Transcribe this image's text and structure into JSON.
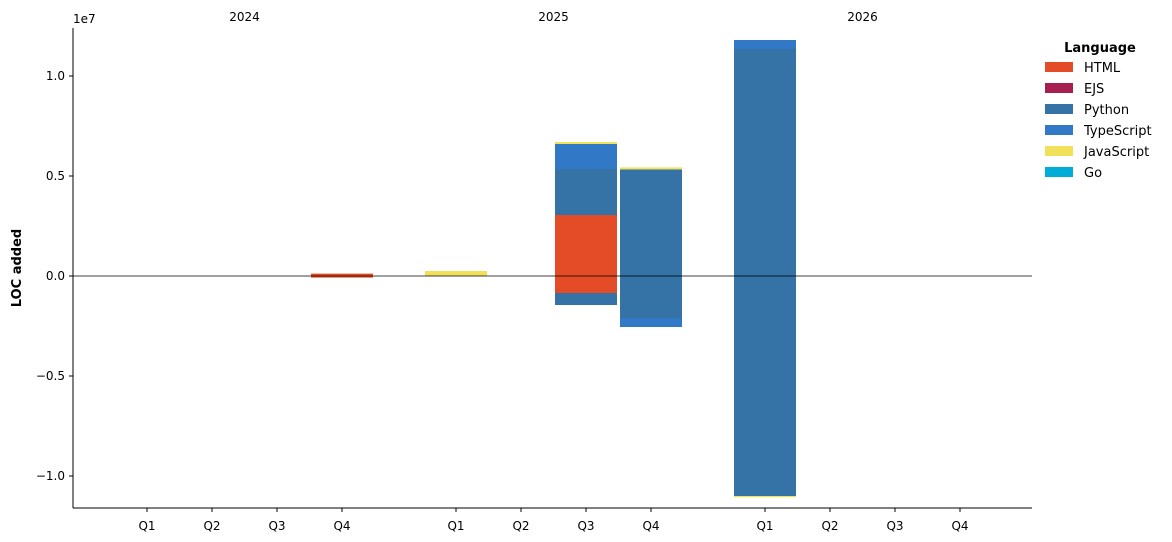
{
  "chart_data": {
    "type": "bar",
    "stacked": true,
    "title": "",
    "xlabel": "",
    "ylabel": "LOC added",
    "y_scale_label": "1e7",
    "ylim": [
      -11600000,
      12400000
    ],
    "yticks": [
      -10000000,
      -5000000,
      0,
      5000000,
      10000000
    ],
    "ytick_labels": [
      "−1.0",
      "−0.5",
      "0.0",
      "0.5",
      "1.0"
    ],
    "grid": false,
    "zero_line": true,
    "years": [
      {
        "label": "2024",
        "quarters": [
          "Q1",
          "Q2",
          "Q3",
          "Q4"
        ]
      },
      {
        "label": "2025",
        "quarters": [
          "Q1",
          "Q2",
          "Q3",
          "Q4"
        ]
      },
      {
        "label": "2026",
        "quarters": [
          "Q1",
          "Q2",
          "Q3",
          "Q4"
        ]
      }
    ],
    "categories": [
      "2024 Q1",
      "2024 Q2",
      "2024 Q3",
      "2024 Q4",
      "2025 Q1",
      "2025 Q2",
      "2025 Q3",
      "2025 Q4",
      "2026 Q1",
      "2026 Q2",
      "2026 Q3",
      "2026 Q4"
    ],
    "legend": {
      "title": "Language",
      "placement": "upper right, outside plot"
    },
    "series": [
      {
        "name": "HTML",
        "color": "#e34c26",
        "values": [
          0,
          0,
          0,
          120000,
          0,
          0,
          3050000,
          0,
          0,
          0,
          0,
          0
        ],
        "negative": [
          0,
          0,
          0,
          -80000,
          0,
          0,
          -850000,
          0,
          0,
          0,
          0,
          0
        ]
      },
      {
        "name": "EJS",
        "color": "#a91e50",
        "values": [
          0,
          0,
          0,
          0,
          0,
          0,
          0,
          0,
          0,
          0,
          0,
          0
        ],
        "negative": [
          0,
          0,
          0,
          0,
          0,
          0,
          0,
          0,
          0,
          0,
          0,
          0
        ]
      },
      {
        "name": "Python",
        "color": "#3572a5",
        "values": [
          0,
          0,
          0,
          0,
          0,
          0,
          2300000,
          5330000,
          11350000,
          0,
          0,
          0
        ],
        "negative": [
          0,
          0,
          0,
          0,
          0,
          0,
          -600000,
          -2100000,
          -11000000,
          0,
          0,
          0
        ]
      },
      {
        "name": "TypeScript",
        "color": "#3178c6",
        "values": [
          0,
          0,
          0,
          0,
          0,
          0,
          1250000,
          0,
          450000,
          0,
          0,
          0
        ],
        "negative": [
          0,
          0,
          0,
          0,
          0,
          0,
          0,
          -450000,
          0,
          0,
          0,
          0
        ]
      },
      {
        "name": "JavaScript",
        "color": "#f1e05a",
        "values": [
          0,
          0,
          0,
          0,
          250000,
          0,
          100000,
          100000,
          0,
          0,
          0,
          0
        ],
        "negative": [
          0,
          0,
          0,
          0,
          0,
          0,
          0,
          0,
          -60000,
          0,
          0,
          0
        ]
      },
      {
        "name": "Go",
        "color": "#00add8",
        "values": [
          0,
          0,
          0,
          0,
          0,
          0,
          0,
          0,
          0,
          0,
          0,
          0
        ],
        "negative": [
          0,
          0,
          0,
          0,
          0,
          0,
          0,
          0,
          0,
          0,
          0,
          0
        ]
      }
    ]
  }
}
